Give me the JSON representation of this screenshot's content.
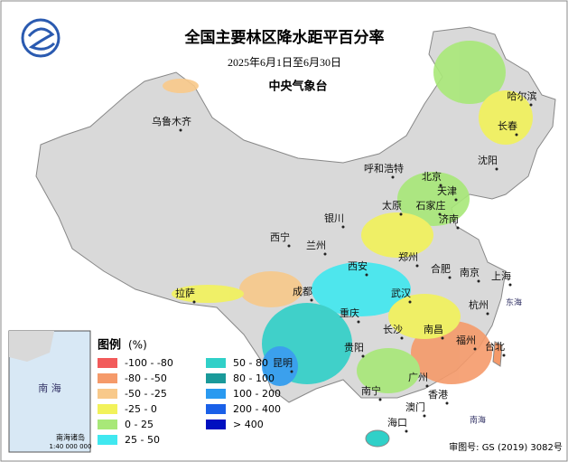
{
  "title": "全国主要林区降水距平百分率",
  "date": "2025年6月1日至6月30日",
  "issuer": "中央气象台",
  "cities": [
    "乌鲁木齐",
    "哈尔滨",
    "长春",
    "沈阳",
    "呼和浩特",
    "北京",
    "天津",
    "太原",
    "石家庄",
    "济南",
    "银川",
    "西宁",
    "兰州",
    "郑州",
    "西安",
    "合肥",
    "南京",
    "上海",
    "拉萨",
    "成都",
    "武汉",
    "杭州",
    "重庆",
    "长沙",
    "南昌",
    "福州",
    "台北",
    "贵阳",
    "昆明",
    "南宁",
    "广州",
    "香港",
    "澳门",
    "海口"
  ],
  "seas": [
    "东海",
    "南海"
  ],
  "legend": {
    "title": "图例",
    "unit": "(%)",
    "items": [
      {
        "label": "-100 - -80",
        "color": "#f25a5a"
      },
      {
        "label": "-80 - -50",
        "color": "#f59a6a"
      },
      {
        "label": "-50 - -25",
        "color": "#f8c98a"
      },
      {
        "label": "-25 - 0",
        "color": "#f2f25a"
      },
      {
        "label": "0 - 25",
        "color": "#a8e878"
      },
      {
        "label": "25 - 50",
        "color": "#40e8f0"
      },
      {
        "label": "50 - 80",
        "color": "#30d0c8"
      },
      {
        "label": "80 - 100",
        "color": "#1a9a9a"
      },
      {
        "label": "100 - 200",
        "color": "#2a9af0"
      },
      {
        "label": "200 - 400",
        "color": "#1a60e8"
      },
      {
        "label": "> 400",
        "color": "#0010c0"
      }
    ]
  },
  "inset": {
    "label": "南海诸岛",
    "scale": "1:40 000 000",
    "sea": "南 海"
  },
  "review_number": "审图号: GS (2019) 3082号"
}
